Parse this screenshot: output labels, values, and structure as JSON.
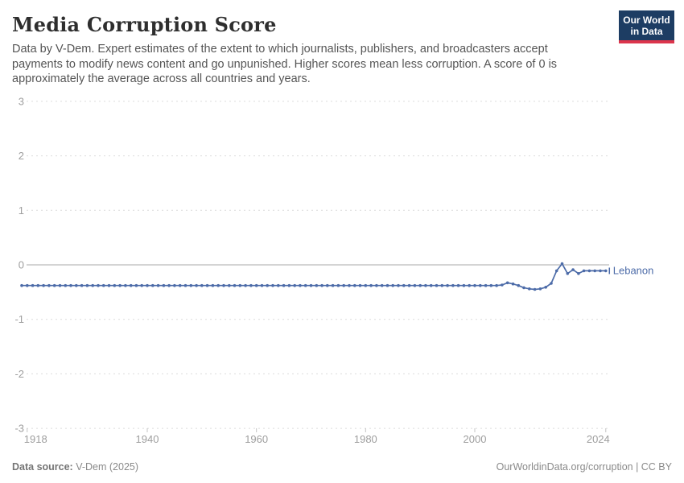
{
  "header": {
    "title": "Media Corruption Score",
    "subtitle": "Data by V-Dem. Expert estimates of the extent to which journalists, publishers, and broadcasters accept payments to modify news content and go unpunished. Higher scores mean less corruption. A score of 0 is approximately the average across all countries and years.",
    "logo": {
      "line1": "Our World",
      "line2": "in Data",
      "bg_color": "#1d3d63",
      "accent_color": "#dc354c"
    }
  },
  "chart_data": {
    "type": "line",
    "title": "Media Corruption Score",
    "xlabel": "",
    "ylabel": "",
    "xlim": [
      1917,
      2024
    ],
    "ylim": [
      -3,
      3
    ],
    "x_ticks": [
      1918,
      1940,
      1960,
      1980,
      2000,
      2024
    ],
    "y_ticks": [
      3,
      2,
      1,
      0,
      -1,
      -2,
      -3
    ],
    "grid": "horizontal dashed",
    "zero_line": true,
    "legend_position": "end-of-line label",
    "colors": {
      "grid": "#dcdcdc",
      "zero_line": "#a8a8a8",
      "tick_text": "#9e9e9e",
      "tick_mark": "#c4c4c4"
    },
    "series": [
      {
        "name": "Lebanon",
        "color": "#4c6ba8",
        "points": [
          [
            1917,
            -0.38
          ],
          [
            1918,
            -0.38
          ],
          [
            1919,
            -0.38
          ],
          [
            1920,
            -0.38
          ],
          [
            1921,
            -0.38
          ],
          [
            1922,
            -0.38
          ],
          [
            1923,
            -0.38
          ],
          [
            1924,
            -0.38
          ],
          [
            1925,
            -0.38
          ],
          [
            1926,
            -0.38
          ],
          [
            1927,
            -0.38
          ],
          [
            1928,
            -0.38
          ],
          [
            1929,
            -0.38
          ],
          [
            1930,
            -0.38
          ],
          [
            1931,
            -0.38
          ],
          [
            1932,
            -0.38
          ],
          [
            1933,
            -0.38
          ],
          [
            1934,
            -0.38
          ],
          [
            1935,
            -0.38
          ],
          [
            1936,
            -0.38
          ],
          [
            1937,
            -0.38
          ],
          [
            1938,
            -0.38
          ],
          [
            1939,
            -0.38
          ],
          [
            1940,
            -0.38
          ],
          [
            1941,
            -0.38
          ],
          [
            1942,
            -0.38
          ],
          [
            1943,
            -0.38
          ],
          [
            1944,
            -0.38
          ],
          [
            1945,
            -0.38
          ],
          [
            1946,
            -0.38
          ],
          [
            1947,
            -0.38
          ],
          [
            1948,
            -0.38
          ],
          [
            1949,
            -0.38
          ],
          [
            1950,
            -0.38
          ],
          [
            1951,
            -0.38
          ],
          [
            1952,
            -0.38
          ],
          [
            1953,
            -0.38
          ],
          [
            1954,
            -0.38
          ],
          [
            1955,
            -0.38
          ],
          [
            1956,
            -0.38
          ],
          [
            1957,
            -0.38
          ],
          [
            1958,
            -0.38
          ],
          [
            1959,
            -0.38
          ],
          [
            1960,
            -0.38
          ],
          [
            1961,
            -0.38
          ],
          [
            1962,
            -0.38
          ],
          [
            1963,
            -0.38
          ],
          [
            1964,
            -0.38
          ],
          [
            1965,
            -0.38
          ],
          [
            1966,
            -0.38
          ],
          [
            1967,
            -0.38
          ],
          [
            1968,
            -0.38
          ],
          [
            1969,
            -0.38
          ],
          [
            1970,
            -0.38
          ],
          [
            1971,
            -0.38
          ],
          [
            1972,
            -0.38
          ],
          [
            1973,
            -0.38
          ],
          [
            1974,
            -0.38
          ],
          [
            1975,
            -0.38
          ],
          [
            1976,
            -0.38
          ],
          [
            1977,
            -0.38
          ],
          [
            1978,
            -0.38
          ],
          [
            1979,
            -0.38
          ],
          [
            1980,
            -0.38
          ],
          [
            1981,
            -0.38
          ],
          [
            1982,
            -0.38
          ],
          [
            1983,
            -0.38
          ],
          [
            1984,
            -0.38
          ],
          [
            1985,
            -0.38
          ],
          [
            1986,
            -0.38
          ],
          [
            1987,
            -0.38
          ],
          [
            1988,
            -0.38
          ],
          [
            1989,
            -0.38
          ],
          [
            1990,
            -0.38
          ],
          [
            1991,
            -0.38
          ],
          [
            1992,
            -0.38
          ],
          [
            1993,
            -0.38
          ],
          [
            1994,
            -0.38
          ],
          [
            1995,
            -0.38
          ],
          [
            1996,
            -0.38
          ],
          [
            1997,
            -0.38
          ],
          [
            1998,
            -0.38
          ],
          [
            1999,
            -0.38
          ],
          [
            2000,
            -0.38
          ],
          [
            2001,
            -0.38
          ],
          [
            2002,
            -0.38
          ],
          [
            2003,
            -0.38
          ],
          [
            2004,
            -0.38
          ],
          [
            2005,
            -0.37
          ],
          [
            2006,
            -0.33
          ],
          [
            2007,
            -0.35
          ],
          [
            2008,
            -0.38
          ],
          [
            2009,
            -0.42
          ],
          [
            2010,
            -0.44
          ],
          [
            2011,
            -0.45
          ],
          [
            2012,
            -0.44
          ],
          [
            2013,
            -0.41
          ],
          [
            2014,
            -0.34
          ],
          [
            2015,
            -0.11
          ],
          [
            2016,
            0.02
          ],
          [
            2017,
            -0.16
          ],
          [
            2018,
            -0.09
          ],
          [
            2019,
            -0.16
          ],
          [
            2020,
            -0.11
          ],
          [
            2021,
            -0.11
          ],
          [
            2022,
            -0.11
          ],
          [
            2023,
            -0.11
          ],
          [
            2024,
            -0.11
          ]
        ]
      }
    ]
  },
  "footer": {
    "source_label": "Data source:",
    "source_value": " V-Dem (2025)",
    "credit": "OurWorldinData.org/corruption | CC BY"
  }
}
